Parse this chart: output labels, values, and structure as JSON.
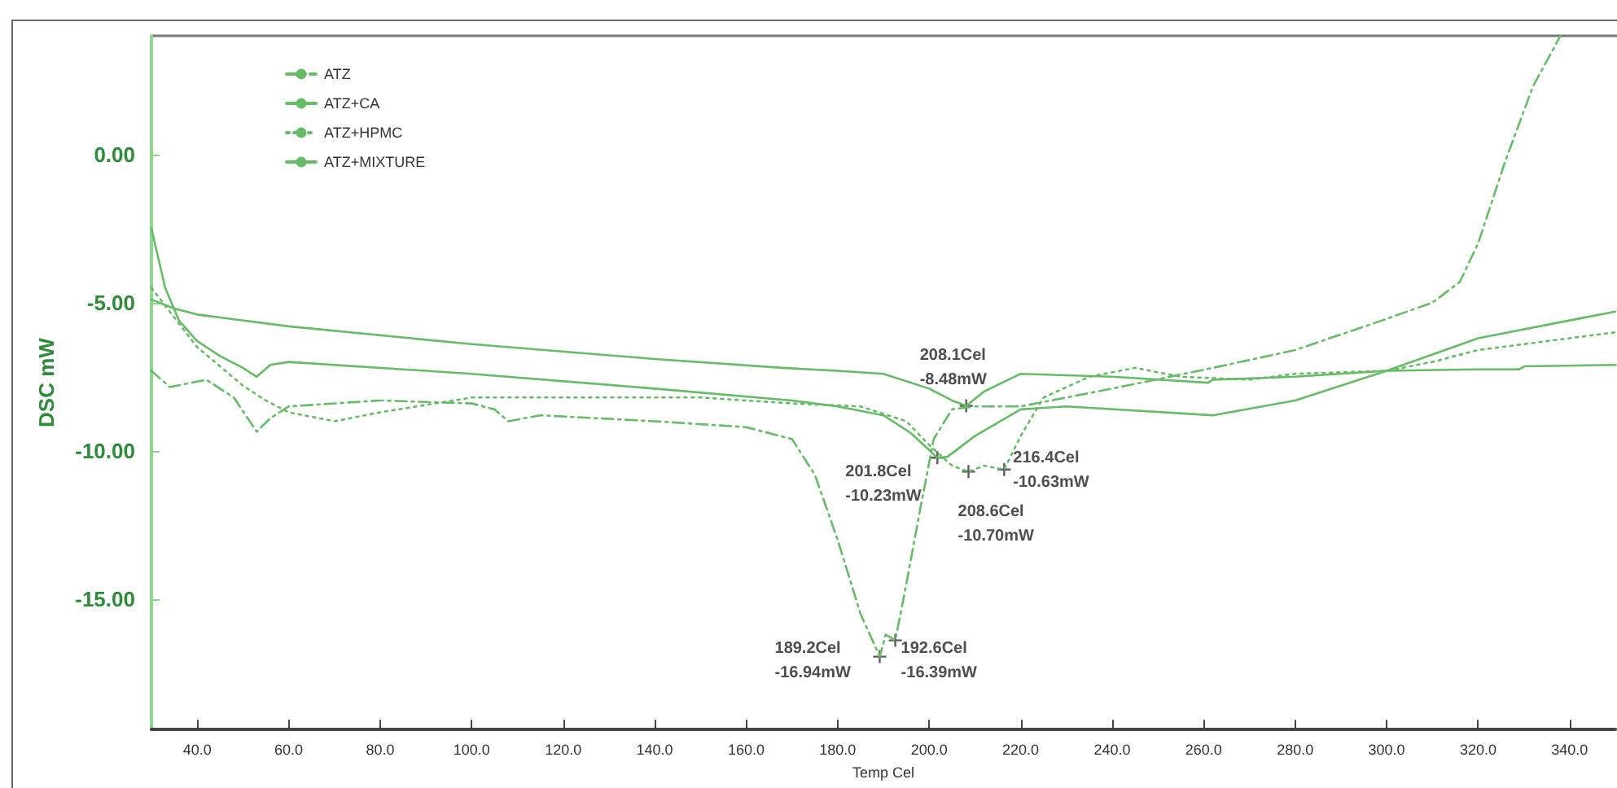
{
  "chart_data": {
    "type": "line",
    "xlabel": "Temp Cel",
    "ylabel": "DSC mW",
    "xlim": [
      30,
      350
    ],
    "ylim": [
      -19.4,
      4.0
    ],
    "xticks": [
      {
        "value": 40,
        "label": "40.0"
      },
      {
        "value": 60,
        "label": "60.0"
      },
      {
        "value": 80,
        "label": "80.0"
      },
      {
        "value": 100,
        "label": "100.0"
      },
      {
        "value": 120,
        "label": "120.0"
      },
      {
        "value": 140,
        "label": "140.0"
      },
      {
        "value": 160,
        "label": "160.0"
      },
      {
        "value": 180,
        "label": "180.0"
      },
      {
        "value": 200,
        "label": "200.0"
      },
      {
        "value": 220,
        "label": "220.0"
      },
      {
        "value": 240,
        "label": "240.0"
      },
      {
        "value": 260,
        "label": "260.0"
      },
      {
        "value": 280,
        "label": "280.0"
      },
      {
        "value": 300,
        "label": "300.0"
      },
      {
        "value": 320,
        "label": "320.0"
      },
      {
        "value": 340,
        "label": "340.0"
      }
    ],
    "yticks": [
      {
        "value": 0,
        "label": "0.00"
      },
      {
        "value": -5,
        "label": "-5.00"
      },
      {
        "value": -10,
        "label": "-10.00"
      },
      {
        "value": -15,
        "label": "-15.00"
      }
    ],
    "grid": false,
    "legend": "top left",
    "marker": "none",
    "series": [
      {
        "name": "ATZ",
        "color": "#66bb66",
        "line_style": "dashed",
        "x": [
          30,
          34,
          42,
          48,
          53,
          56,
          60,
          80,
          100,
          105,
          108,
          115,
          140,
          160,
          170,
          175,
          180,
          185,
          189.2,
          190.5,
          192.6,
          195,
          198,
          201,
          205,
          210,
          220,
          240,
          262,
          280,
          299,
          310,
          316,
          320,
          326,
          332,
          338
        ],
        "values": [
          -7.3,
          -7.85,
          -7.6,
          -8.2,
          -9.35,
          -8.9,
          -8.5,
          -8.3,
          -8.4,
          -8.6,
          -9.0,
          -8.8,
          -9.0,
          -9.2,
          -9.6,
          -10.8,
          -13.0,
          -15.5,
          -16.94,
          -16.2,
          -16.39,
          -14.5,
          -12.0,
          -9.6,
          -8.6,
          -8.5,
          -8.5,
          -7.9,
          -7.2,
          -6.6,
          -5.6,
          -5.0,
          -4.3,
          -3.0,
          -0.2,
          2.3,
          4.0
        ]
      },
      {
        "name": "ATZ+CA",
        "color": "#66bb66",
        "line_style": "solid",
        "x": [
          30,
          35,
          40,
          45,
          60,
          100,
          140,
          168,
          180,
          190,
          200,
          205,
          208.1,
          212,
          220,
          240,
          261,
          262,
          280,
          300,
          320,
          329,
          330,
          350
        ],
        "values": [
          -4.9,
          -5.2,
          -5.4,
          -5.5,
          -5.8,
          -6.4,
          -6.9,
          -7.2,
          -7.3,
          -7.4,
          -7.9,
          -8.3,
          -8.48,
          -8.0,
          -7.4,
          -7.5,
          -7.7,
          -7.6,
          -7.5,
          -7.3,
          -7.25,
          -7.25,
          -7.15,
          -7.1
        ]
      },
      {
        "name": "ATZ+HPMC",
        "color": "#66bb66",
        "line_style": "dotted",
        "x": [
          30,
          40,
          50,
          55,
          60,
          70,
          80,
          100,
          120,
          150,
          170,
          185,
          195,
          200,
          205,
          208.6,
          212,
          216.4,
          220,
          225,
          235,
          245,
          255,
          270,
          280,
          300,
          310,
          320,
          340,
          350
        ],
        "values": [
          -4.5,
          -6.5,
          -7.8,
          -8.3,
          -8.7,
          -9.0,
          -8.7,
          -8.2,
          -8.2,
          -8.2,
          -8.4,
          -8.5,
          -9.0,
          -9.8,
          -10.5,
          -10.7,
          -10.5,
          -10.63,
          -9.5,
          -8.2,
          -7.5,
          -7.2,
          -7.5,
          -7.6,
          -7.4,
          -7.3,
          -7.0,
          -6.6,
          -6.2,
          -6.0
        ]
      },
      {
        "name": "ATZ+MIXTURE",
        "color": "#66bb66",
        "line_style": "solid",
        "x": [
          30,
          33,
          36,
          40,
          45,
          50,
          53,
          56,
          60,
          100,
          140,
          170,
          180,
          190,
          196,
          201.8,
          204,
          210,
          220,
          230,
          262,
          280,
          300,
          320,
          340,
          350
        ],
        "values": [
          -2.5,
          -4.5,
          -5.6,
          -6.3,
          -6.8,
          -7.2,
          -7.5,
          -7.1,
          -7.0,
          -7.4,
          -7.9,
          -8.3,
          -8.5,
          -8.8,
          -9.4,
          -10.23,
          -10.2,
          -9.5,
          -8.6,
          -8.5,
          -8.8,
          -8.3,
          -7.3,
          -6.2,
          -5.6,
          -5.3
        ]
      }
    ],
    "annotations": [
      {
        "text": "208.1Cel\n-8.48mW",
        "x": 208.1,
        "y": -8.48
      },
      {
        "text": "201.8Cel\n-10.23mW",
        "x": 201.8,
        "y": -10.23
      },
      {
        "text": "208.6Cel\n-10.70mW",
        "x": 208.6,
        "y": -10.7
      },
      {
        "text": "216.4Cel\n-10.63mW",
        "x": 216.4,
        "y": -10.63
      },
      {
        "text": "189.2Cel\n-16.94mW",
        "x": 189.2,
        "y": -16.94
      },
      {
        "text": "192.6Cel\n-16.39mW",
        "x": 192.6,
        "y": -16.39
      }
    ]
  }
}
